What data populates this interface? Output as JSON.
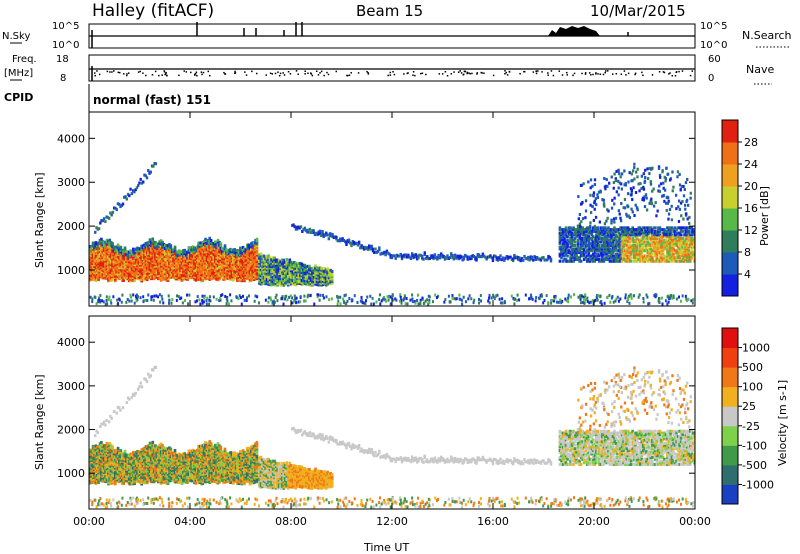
{
  "header": {
    "station": "Halley (fitACF)",
    "beam": "Beam 15",
    "date": "10/Mar/2015"
  },
  "status_panels": {
    "nsky_label": "N.Sky",
    "nsky_ticks": [
      "10^5",
      "10^0"
    ],
    "nsearch_label": "N.Search",
    "nsearch_ticks": [
      "10^5",
      "10^0"
    ],
    "freq_label": "Freq.",
    "freq_unit": "[MHz]",
    "freq_ticks": [
      "18",
      "8"
    ],
    "nave_label": "Nave",
    "nave_ticks": [
      "60",
      "0"
    ],
    "cpid_label": "CPID",
    "cpid_value": "normal (fast) 151"
  },
  "chart_data": [
    {
      "type": "heatmap",
      "name": "power",
      "ylabel": "Slant Range [km]",
      "yticks": [
        "4000",
        "3000",
        "2000",
        "1000"
      ],
      "ytick_values": [
        4000,
        3000,
        2000,
        1000
      ],
      "ylim": [
        180,
        4600
      ],
      "xlim": [
        0,
        24
      ],
      "colorbar": {
        "label": "Power [dB]",
        "ticks": [
          "28",
          "24",
          "20",
          "16",
          "12",
          "8",
          "4"
        ],
        "tick_values": [
          28,
          24,
          20,
          16,
          12,
          8,
          4
        ],
        "range": [
          0,
          32
        ],
        "colors": [
          "#1420e0",
          "#1e5ab8",
          "#2f7d5a",
          "#58b848",
          "#c8d030",
          "#f0a020",
          "#f07018",
          "#e02010"
        ]
      }
    },
    {
      "type": "heatmap",
      "name": "velocity",
      "ylabel": "Slant Range [km]",
      "yticks": [
        "4000",
        "3000",
        "2000",
        "1000"
      ],
      "ytick_values": [
        4000,
        3000,
        2000,
        1000
      ],
      "ylim": [
        180,
        4600
      ],
      "xlim": [
        0,
        24
      ],
      "xlabel": "Time UT",
      "xticks": [
        "00:00",
        "04:00",
        "08:00",
        "12:00",
        "16:00",
        "20:00",
        "00:00"
      ],
      "xtick_values": [
        0,
        4,
        8,
        12,
        16,
        20,
        24
      ],
      "colorbar": {
        "label": "Velocity [m s-1]",
        "ticks": [
          "1000",
          "500",
          "100",
          "25",
          "-25",
          "-100",
          "-500",
          "-1000"
        ],
        "colors": [
          "#1840c0",
          "#2f6e6e",
          "#3f9a4a",
          "#7fd04a",
          "#c8c8c8",
          "#f0b020",
          "#f07818",
          "#f04010",
          "#e01010"
        ]
      }
    }
  ]
}
